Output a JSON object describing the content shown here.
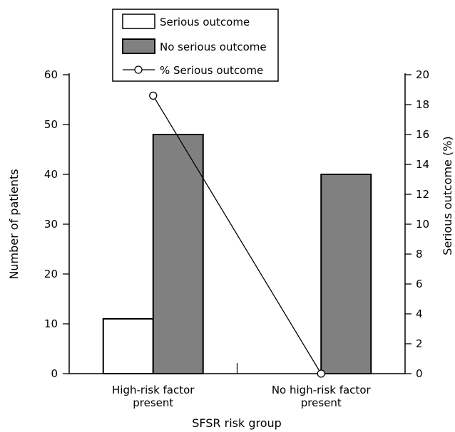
{
  "chart_data": {
    "type": "bar",
    "categories": [
      "High-risk factor present",
      "No high-risk factor present"
    ],
    "category_label_lines": [
      [
        "High-risk factor",
        "present"
      ],
      [
        "No high-risk factor",
        "present"
      ]
    ],
    "xlabel": "SFSR risk group",
    "ylabel": "Number of patients",
    "y2label": "Serious outcome (%)",
    "ylim": [
      0,
      60
    ],
    "y2lim": [
      0,
      20
    ],
    "yticks": [
      "0",
      "10",
      "20",
      "30",
      "40",
      "50",
      "60"
    ],
    "y2ticks": [
      "0",
      "2",
      "4",
      "6",
      "8",
      "10",
      "12",
      "14",
      "16",
      "18",
      "20"
    ],
    "series": [
      {
        "name": "Serious outcome",
        "kind": "bar",
        "axis": "left",
        "values": [
          11,
          0
        ],
        "color": "#ffffff"
      },
      {
        "name": "No serious outcome",
        "kind": "bar",
        "axis": "left",
        "values": [
          48,
          40
        ],
        "color": "#808080"
      },
      {
        "name": "% Serious outcome",
        "kind": "line",
        "axis": "right",
        "values": [
          18.6,
          0
        ],
        "color": "#000000"
      }
    ],
    "legend_position": "top-center",
    "grid": false
  }
}
